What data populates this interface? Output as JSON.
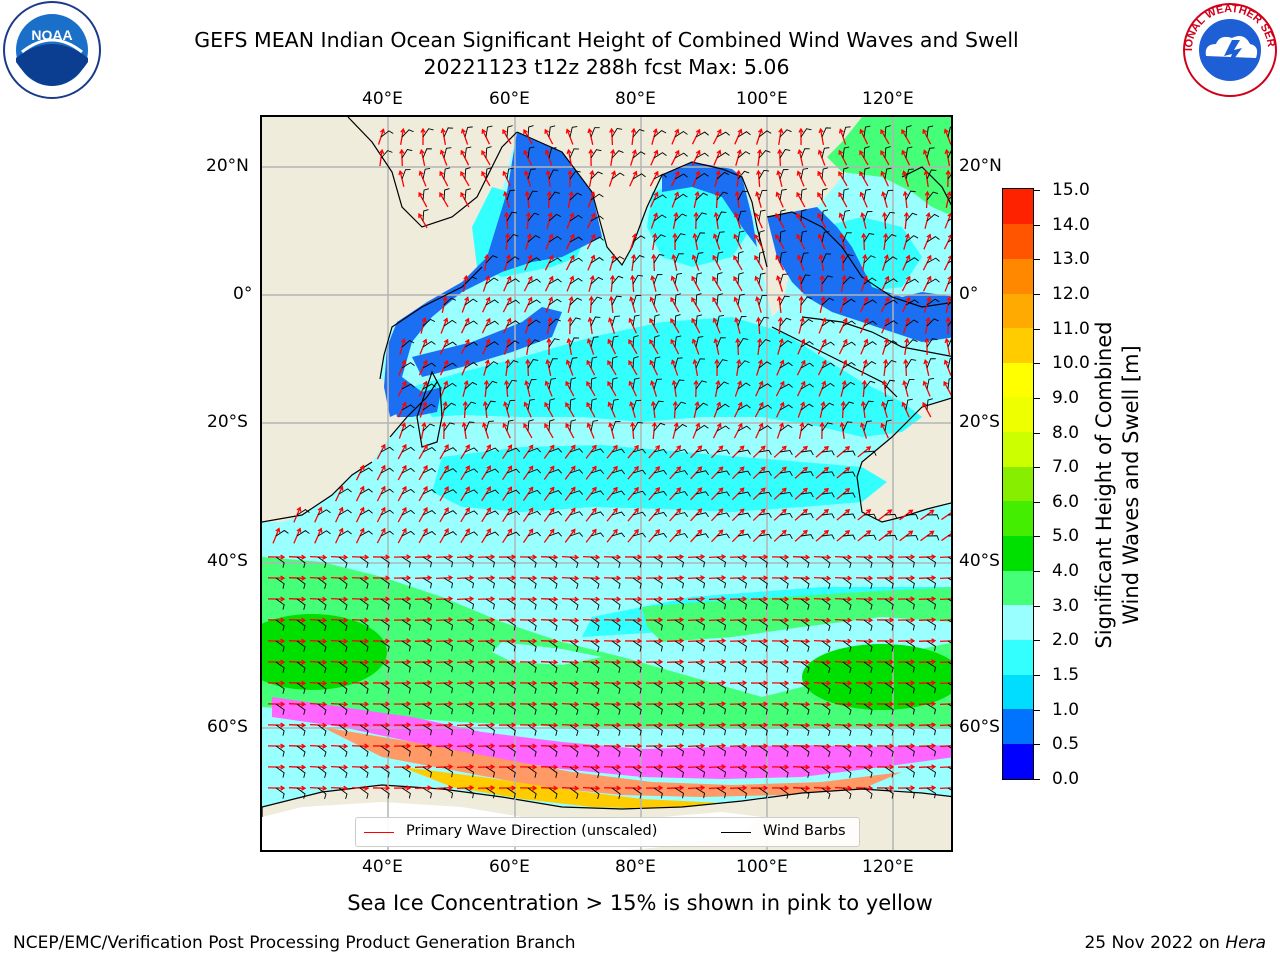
{
  "title": {
    "line1": "GEFS MEAN Indian Ocean Significant Height of Combined Wind Waves and Swell",
    "line2": "20221123 t12z 288h fcst   Max: 5.06"
  },
  "logos": {
    "left": {
      "name": "NOAA",
      "text": "NOAA"
    },
    "right": {
      "name": "National Weather Service",
      "text": "NATIONAL WEATHER SERVICE"
    }
  },
  "map": {
    "top_lon_labels": [
      "40°E",
      "60°E",
      "80°E",
      "100°E",
      "120°E"
    ],
    "bottom_lon_labels": [
      "40°E",
      "60°E",
      "80°E",
      "100°E",
      "120°E"
    ],
    "left_lat_labels": [
      "20°N",
      "0°",
      "20°S",
      "40°S",
      "60°S"
    ],
    "right_lat_labels": [
      "20°N",
      "0°",
      "20°S",
      "40°S",
      "60°S"
    ],
    "legend": {
      "wave_label": "Primary Wave Direction (unscaled)",
      "wave_color": "#ff0000",
      "barb_label": "Wind Barbs",
      "barb_color": "#000000"
    },
    "land_color": "#efecdc",
    "ice_colors": [
      "#ff33cc",
      "#ff66ff",
      "#ff9966",
      "#ffcc00"
    ]
  },
  "colorbar": {
    "label": "Significant Height of Combined Wind Waves and Swell [m]",
    "label_line1": "Significant Height of Combined",
    "label_line2": "Wind Waves and Swell [m]",
    "ticks": [
      "0.0",
      "0.5",
      "1.0",
      "1.5",
      "2.0",
      "3.0",
      "4.0",
      "5.0",
      "6.0",
      "7.0",
      "8.0",
      "9.0",
      "10.0",
      "11.0",
      "12.0",
      "13.0",
      "14.0",
      "15.0"
    ],
    "colors": [
      "#0000ff",
      "#0073ff",
      "#00ddff",
      "#33ffff",
      "#99ffff",
      "#44ff77",
      "#00e000",
      "#44ee00",
      "#88ee00",
      "#ccff00",
      "#eeff00",
      "#ffff00",
      "#ffcc00",
      "#ffaa00",
      "#ff8800",
      "#ff5500",
      "#ff2200"
    ]
  },
  "caption": "Sea Ice Concentration > 15% is shown in pink to yellow",
  "footer": {
    "left": "NCEP/EMC/Verification Post Processing Product Generation Branch",
    "right_date": "25 Nov 2022 on",
    "right_host": "Hera"
  }
}
